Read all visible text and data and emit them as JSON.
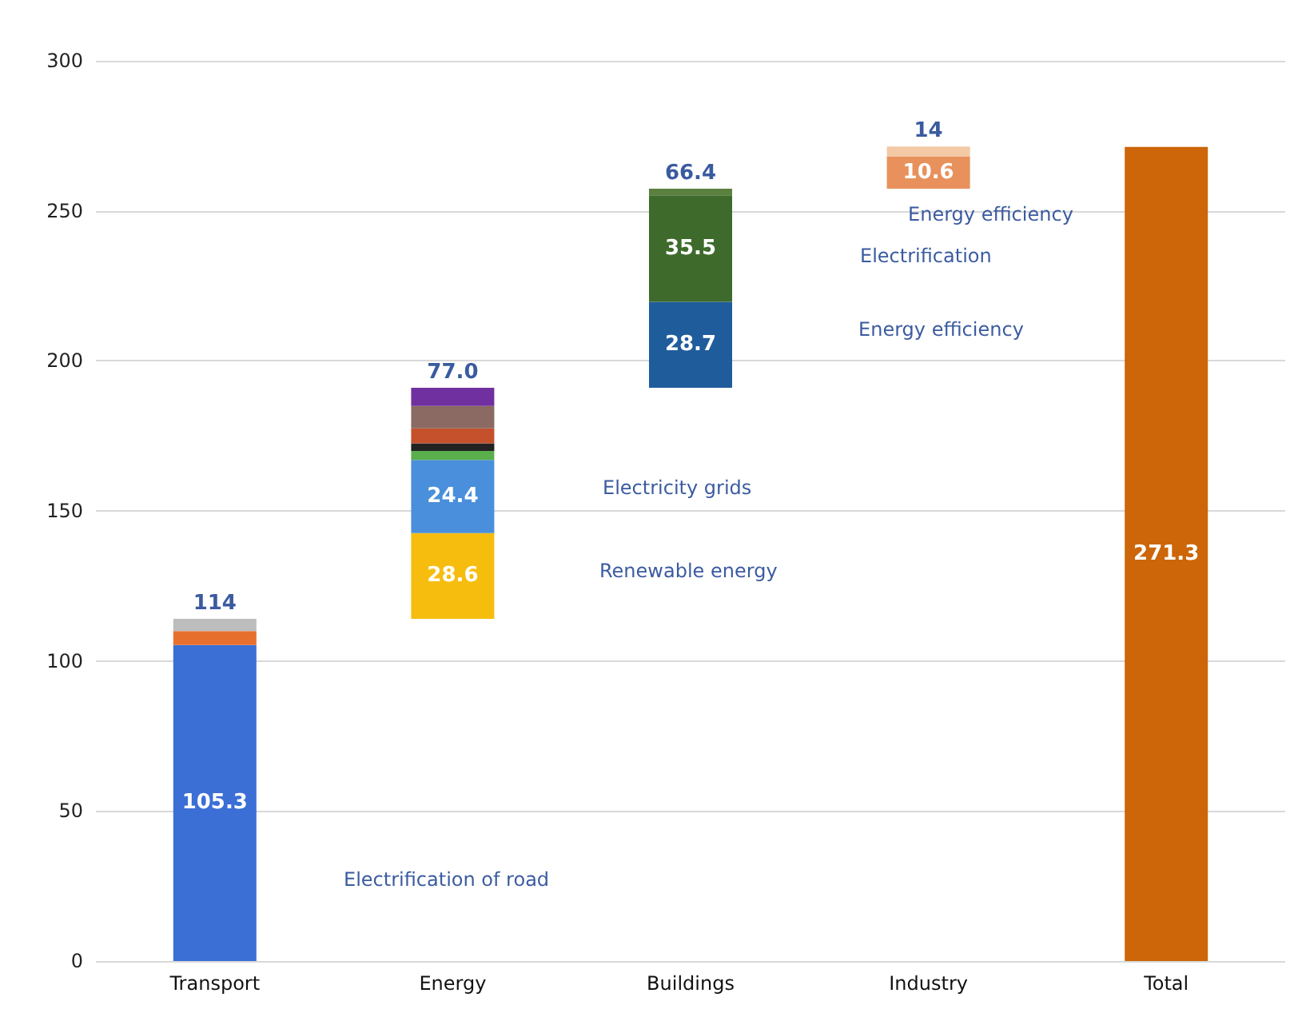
{
  "chart_data": {
    "type": "bar",
    "categories": [
      "Transport",
      "Energy",
      "Buildings",
      "Industry",
      "Total"
    ],
    "series": [
      {
        "color": "#3b6fd6",
        "base": [
          0,
          null,
          null,
          null,
          null
        ],
        "values": [
          105.3,
          null,
          null,
          null,
          null
        ],
        "value_labels": [
          "105.3",
          null,
          null,
          null,
          null
        ]
      },
      {
        "color": "#e8702e",
        "base": [
          105.3,
          null,
          null,
          null,
          null
        ],
        "values": [
          4.7,
          null,
          null,
          null,
          null
        ]
      },
      {
        "color": "#bdbdbd",
        "base": [
          110,
          null,
          null,
          null,
          null
        ],
        "values": [
          4.0,
          null,
          null,
          null,
          null
        ]
      },
      {
        "color": "#f6bd0f",
        "base": [
          null,
          114,
          null,
          null,
          null
        ],
        "values": [
          null,
          28.6,
          null,
          null,
          null
        ],
        "value_labels": [
          null,
          "28.6",
          null,
          null,
          null
        ]
      },
      {
        "color": "#4a8fdb",
        "base": [
          null,
          142.6,
          null,
          null,
          null
        ],
        "values": [
          null,
          24.4,
          null,
          null,
          null
        ],
        "value_labels": [
          null,
          "24.4",
          null,
          null,
          null
        ]
      },
      {
        "color": "#5aae4c",
        "base": [
          null,
          167,
          null,
          null,
          null
        ],
        "values": [
          null,
          3,
          null,
          null,
          null
        ]
      },
      {
        "color": "#222222",
        "base": [
          null,
          170,
          null,
          null,
          null
        ],
        "values": [
          null,
          2.5,
          null,
          null,
          null
        ]
      },
      {
        "color": "#c4502c",
        "base": [
          null,
          172.5,
          null,
          null,
          null
        ],
        "values": [
          null,
          5,
          null,
          null,
          null
        ]
      },
      {
        "color": "#8a6a62",
        "base": [
          null,
          177.5,
          null,
          null,
          null
        ],
        "values": [
          null,
          7.5,
          null,
          null,
          null
        ]
      },
      {
        "color": "#7030a0",
        "base": [
          null,
          185,
          null,
          null,
          null
        ],
        "values": [
          null,
          6,
          null,
          null,
          null
        ]
      },
      {
        "color": "#1f5c9c",
        "base": [
          null,
          null,
          191,
          null,
          null
        ],
        "values": [
          null,
          null,
          28.7,
          null,
          null
        ],
        "value_labels": [
          null,
          null,
          "28.7",
          null,
          null
        ]
      },
      {
        "color": "#3e6b2c",
        "base": [
          null,
          null,
          219.7,
          null,
          null
        ],
        "values": [
          null,
          null,
          35.5,
          null,
          null
        ],
        "value_labels": [
          null,
          null,
          "35.5",
          null,
          null
        ]
      },
      {
        "color": "#5b8040",
        "base": [
          null,
          null,
          255.2,
          null,
          null
        ],
        "values": [
          null,
          null,
          2.2,
          null,
          null
        ]
      },
      {
        "color": "#e8915c",
        "base": [
          null,
          null,
          null,
          257.4,
          null
        ],
        "values": [
          null,
          null,
          null,
          10.6,
          null
        ],
        "value_labels": [
          null,
          null,
          null,
          "10.6",
          null
        ]
      },
      {
        "color": "#f4c9a6",
        "base": [
          null,
          null,
          null,
          268,
          null
        ],
        "values": [
          null,
          null,
          null,
          3.4,
          null
        ]
      },
      {
        "color": "#cc6608",
        "base": [
          null,
          null,
          null,
          null,
          0
        ],
        "values": [
          null,
          null,
          null,
          null,
          271.3
        ],
        "value_labels": [
          null,
          null,
          null,
          null,
          "271.3"
        ]
      }
    ],
    "totals": [
      "114",
      "77.0",
      "66.4",
      "14",
      null
    ],
    "ylim": [
      0,
      300
    ],
    "yticks": [
      0,
      50,
      100,
      150,
      200,
      250,
      300
    ],
    "grid": "y",
    "annotations": [
      "Electrification of road",
      "Renewable energy",
      "Electricity grids",
      "Energy efficiency",
      "Electrification",
      "Energy efficiency"
    ]
  }
}
